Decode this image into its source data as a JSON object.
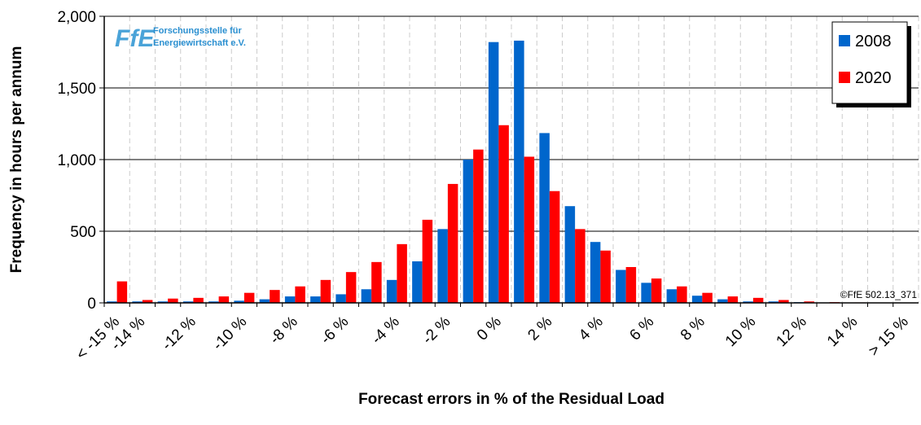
{
  "chart_data": {
    "type": "bar",
    "y_label": "Frequency in hours per annum",
    "x_label": "Forecast errors in % of the Residual Load",
    "logo_short": "FfE",
    "logo_text": [
      "Forschungsstelle für",
      "Energiewirtschaft e.V."
    ],
    "copyright": "©FfE 502.13_371",
    "categories": [
      "< -15 %",
      "-14 %",
      null,
      "-12 %",
      null,
      "-10 %",
      null,
      "-8 %",
      null,
      "-6 %",
      null,
      "-4 %",
      null,
      "-2 %",
      null,
      "0 %",
      null,
      "2 %",
      null,
      "4 %",
      null,
      "6 %",
      null,
      "8 %",
      null,
      "10 %",
      null,
      "12 %",
      null,
      "14 %",
      null,
      "> 15 %"
    ],
    "series": [
      {
        "name": "2008",
        "color": "#0066cc",
        "values": [
          10,
          10,
          10,
          10,
          10,
          15,
          25,
          45,
          45,
          60,
          95,
          160,
          290,
          515,
          1000,
          1820,
          1830,
          1185,
          675,
          425,
          230,
          140,
          95,
          50,
          25,
          10,
          10,
          5,
          3,
          2,
          1,
          0
        ]
      },
      {
        "name": "2020",
        "color": "#ff0000",
        "values": [
          150,
          20,
          30,
          35,
          45,
          70,
          90,
          115,
          160,
          215,
          285,
          410,
          580,
          830,
          1070,
          1240,
          1020,
          780,
          515,
          365,
          250,
          170,
          115,
          70,
          45,
          35,
          20,
          10,
          5,
          3,
          2,
          0
        ]
      }
    ],
    "ylim": [
      0,
      2000
    ],
    "yticks": [
      0,
      500,
      {
        "value": 1000,
        "label": "1,000"
      },
      {
        "value": 1500,
        "label": "1,500"
      },
      {
        "value": 2000,
        "label": "2,000"
      }
    ],
    "grid": true,
    "legend": "top-right"
  }
}
